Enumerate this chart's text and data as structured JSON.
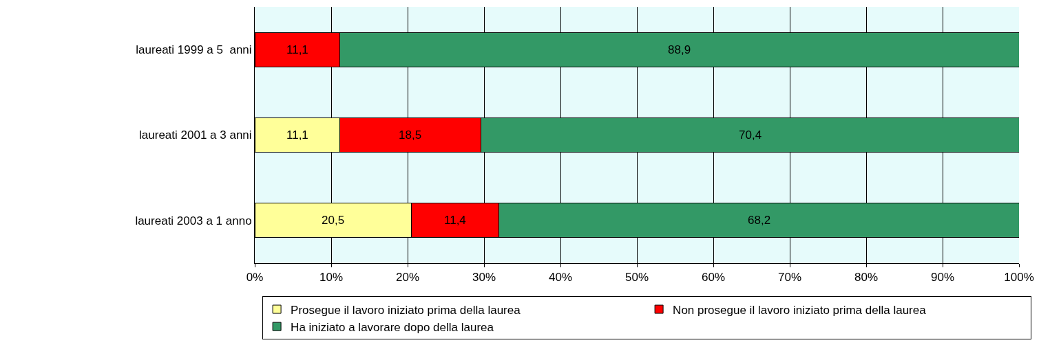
{
  "chart_data": {
    "type": "bar",
    "orientation": "horizontal",
    "stacked": true,
    "categories": [
      "laureati 1999 a 5  anni",
      "laureati 2001 a 3 anni",
      "laureati 2003 a 1 anno"
    ],
    "series": [
      {
        "name": "Prosegue il lavoro iniziato prima della laurea",
        "color": "#ffff99",
        "values": [
          0,
          11.1,
          20.5
        ],
        "value_labels": [
          null,
          "11,1",
          "20,5"
        ]
      },
      {
        "name": "Non prosegue il lavoro iniziato prima della laurea",
        "color": "#ff0000",
        "values": [
          11.1,
          18.5,
          11.4
        ],
        "value_labels": [
          "11,1",
          "18,5",
          "11,4"
        ]
      },
      {
        "name": "Ha iniziato a lavorare dopo della laurea",
        "color": "#339966",
        "values": [
          88.9,
          70.4,
          68.2
        ],
        "value_labels": [
          "88,9",
          "70,4",
          "68,2"
        ]
      }
    ],
    "xlim": [
      0,
      100
    ],
    "xticks": [
      {
        "value": 0,
        "label": "0%"
      },
      {
        "value": 10,
        "label": "10%"
      },
      {
        "value": 20,
        "label": "20%"
      },
      {
        "value": 30,
        "label": "30%"
      },
      {
        "value": 40,
        "label": "40%"
      },
      {
        "value": 50,
        "label": "50%"
      },
      {
        "value": 60,
        "label": "60%"
      },
      {
        "value": 70,
        "label": "70%"
      },
      {
        "value": 80,
        "label": "80%"
      },
      {
        "value": 90,
        "label": "90%"
      },
      {
        "value": 100,
        "label": "100%"
      }
    ],
    "grid": "x",
    "legend": "bottom"
  }
}
